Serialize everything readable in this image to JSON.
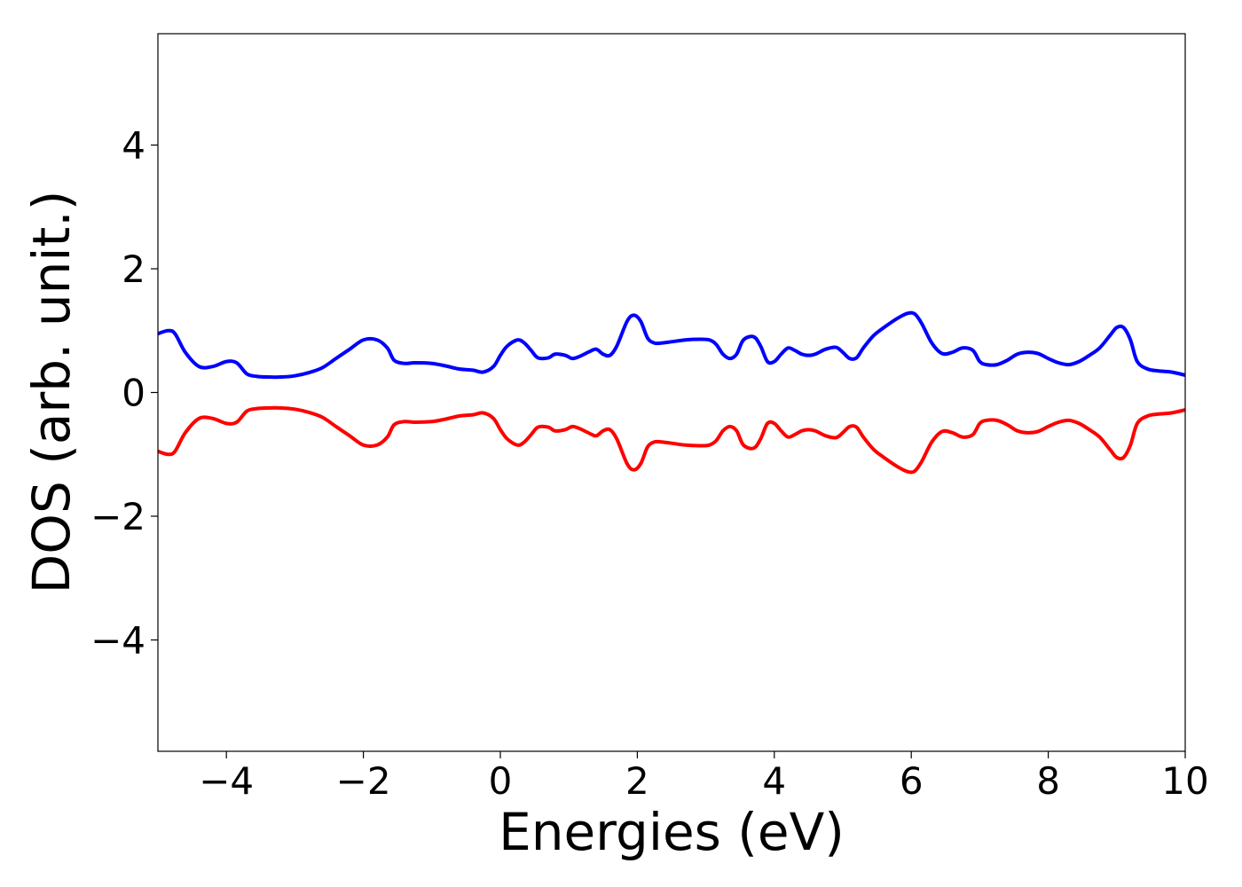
{
  "chart_data": {
    "type": "line",
    "xlabel": "Energies (eV)",
    "ylabel": "DOS (arb. unit.)",
    "xlim": [
      -5,
      10
    ],
    "ylim": [
      -5.8,
      5.8
    ],
    "x_ticks": [
      -4,
      -2,
      0,
      2,
      4,
      6,
      8,
      10
    ],
    "x_tick_labels": [
      "−4",
      "−2",
      "0",
      "2",
      "4",
      "6",
      "8",
      "10"
    ],
    "y_ticks": [
      -4,
      -2,
      0,
      2,
      4
    ],
    "y_tick_labels": [
      "−4",
      "−2",
      "0",
      "2",
      "4"
    ],
    "grid": false,
    "series": [
      {
        "color": "#0000ff",
        "x": [
          -5.0,
          -4.85,
          -4.75,
          -4.6,
          -4.4,
          -4.2,
          -4.0,
          -3.85,
          -3.7,
          -3.55,
          -3.4,
          -3.2,
          -3.0,
          -2.8,
          -2.6,
          -2.4,
          -2.2,
          -2.0,
          -1.8,
          -1.65,
          -1.55,
          -1.4,
          -1.25,
          -1.0,
          -0.8,
          -0.6,
          -0.4,
          -0.25,
          -0.1,
          0.0,
          0.1,
          0.25,
          0.35,
          0.45,
          0.55,
          0.7,
          0.8,
          0.95,
          1.05,
          1.15,
          1.3,
          1.4,
          1.5,
          1.6,
          1.7,
          1.85,
          1.95,
          2.05,
          2.15,
          2.25,
          2.35,
          2.5,
          2.7,
          2.9,
          3.05,
          3.15,
          3.25,
          3.35,
          3.45,
          3.55,
          3.7,
          3.8,
          3.9,
          4.0,
          4.1,
          4.2,
          4.3,
          4.4,
          4.5,
          4.6,
          4.75,
          4.9,
          5.0,
          5.1,
          5.2,
          5.3,
          5.45,
          5.6,
          5.8,
          5.95,
          6.05,
          6.15,
          6.3,
          6.45,
          6.6,
          6.75,
          6.9,
          7.0,
          7.1,
          7.25,
          7.4,
          7.55,
          7.7,
          7.85,
          8.0,
          8.15,
          8.3,
          8.45,
          8.6,
          8.75,
          8.9,
          9.0,
          9.1,
          9.2,
          9.3,
          9.45,
          9.6,
          9.8,
          10.0
        ],
        "y": [
          0.95,
          1.0,
          0.95,
          0.65,
          0.42,
          0.42,
          0.5,
          0.48,
          0.3,
          0.26,
          0.25,
          0.25,
          0.27,
          0.32,
          0.4,
          0.55,
          0.7,
          0.85,
          0.85,
          0.72,
          0.52,
          0.47,
          0.48,
          0.47,
          0.43,
          0.38,
          0.36,
          0.33,
          0.42,
          0.6,
          0.75,
          0.85,
          0.8,
          0.68,
          0.56,
          0.56,
          0.62,
          0.6,
          0.55,
          0.58,
          0.66,
          0.7,
          0.62,
          0.6,
          0.75,
          1.15,
          1.25,
          1.15,
          0.88,
          0.8,
          0.8,
          0.82,
          0.85,
          0.86,
          0.85,
          0.78,
          0.62,
          0.55,
          0.62,
          0.85,
          0.9,
          0.75,
          0.5,
          0.5,
          0.62,
          0.72,
          0.68,
          0.62,
          0.6,
          0.62,
          0.7,
          0.73,
          0.65,
          0.55,
          0.56,
          0.72,
          0.92,
          1.05,
          1.2,
          1.28,
          1.27,
          1.12,
          0.8,
          0.63,
          0.65,
          0.72,
          0.68,
          0.5,
          0.45,
          0.45,
          0.52,
          0.62,
          0.65,
          0.63,
          0.55,
          0.48,
          0.45,
          0.5,
          0.6,
          0.72,
          0.92,
          1.05,
          1.05,
          0.85,
          0.5,
          0.38,
          0.35,
          0.33,
          0.28
        ]
      },
      {
        "color": "#ff0000",
        "x": [
          -5.0,
          -4.85,
          -4.75,
          -4.6,
          -4.4,
          -4.2,
          -4.0,
          -3.85,
          -3.7,
          -3.55,
          -3.4,
          -3.2,
          -3.0,
          -2.8,
          -2.6,
          -2.4,
          -2.2,
          -2.0,
          -1.8,
          -1.65,
          -1.55,
          -1.4,
          -1.25,
          -1.0,
          -0.8,
          -0.6,
          -0.4,
          -0.25,
          -0.1,
          0.0,
          0.1,
          0.25,
          0.35,
          0.45,
          0.55,
          0.7,
          0.8,
          0.95,
          1.05,
          1.15,
          1.3,
          1.4,
          1.5,
          1.6,
          1.7,
          1.85,
          1.95,
          2.05,
          2.15,
          2.25,
          2.35,
          2.5,
          2.7,
          2.9,
          3.05,
          3.15,
          3.25,
          3.35,
          3.45,
          3.55,
          3.7,
          3.8,
          3.9,
          4.0,
          4.1,
          4.2,
          4.3,
          4.4,
          4.5,
          4.6,
          4.75,
          4.9,
          5.0,
          5.1,
          5.2,
          5.3,
          5.45,
          5.6,
          5.8,
          5.95,
          6.05,
          6.15,
          6.3,
          6.45,
          6.6,
          6.75,
          6.9,
          7.0,
          7.1,
          7.25,
          7.4,
          7.55,
          7.7,
          7.85,
          8.0,
          8.15,
          8.3,
          8.45,
          8.6,
          8.75,
          8.9,
          9.0,
          9.1,
          9.2,
          9.3,
          9.45,
          9.6,
          9.8,
          10.0
        ],
        "y": [
          -0.95,
          -1.0,
          -0.95,
          -0.65,
          -0.42,
          -0.42,
          -0.5,
          -0.48,
          -0.3,
          -0.26,
          -0.25,
          -0.25,
          -0.27,
          -0.32,
          -0.4,
          -0.55,
          -0.7,
          -0.85,
          -0.85,
          -0.72,
          -0.52,
          -0.47,
          -0.48,
          -0.47,
          -0.43,
          -0.38,
          -0.36,
          -0.33,
          -0.42,
          -0.6,
          -0.75,
          -0.85,
          -0.8,
          -0.68,
          -0.56,
          -0.56,
          -0.62,
          -0.6,
          -0.55,
          -0.58,
          -0.66,
          -0.7,
          -0.62,
          -0.6,
          -0.75,
          -1.15,
          -1.25,
          -1.15,
          -0.88,
          -0.8,
          -0.8,
          -0.82,
          -0.85,
          -0.86,
          -0.85,
          -0.78,
          -0.62,
          -0.55,
          -0.62,
          -0.85,
          -0.9,
          -0.75,
          -0.5,
          -0.5,
          -0.62,
          -0.72,
          -0.68,
          -0.62,
          -0.6,
          -0.62,
          -0.7,
          -0.73,
          -0.65,
          -0.55,
          -0.56,
          -0.72,
          -0.92,
          -1.05,
          -1.2,
          -1.28,
          -1.27,
          -1.12,
          -0.8,
          -0.63,
          -0.65,
          -0.72,
          -0.68,
          -0.5,
          -0.45,
          -0.45,
          -0.52,
          -0.62,
          -0.65,
          -0.63,
          -0.55,
          -0.48,
          -0.45,
          -0.5,
          -0.6,
          -0.72,
          -0.92,
          -1.05,
          -1.05,
          -0.85,
          -0.5,
          -0.38,
          -0.35,
          -0.33,
          -0.28
        ]
      }
    ]
  }
}
